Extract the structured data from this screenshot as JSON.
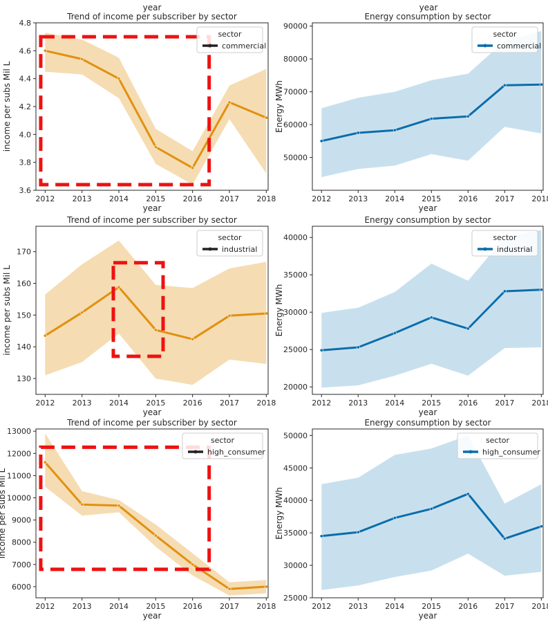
{
  "figure": {
    "top_label": "year"
  },
  "chart_data": [
    {
      "type": "line",
      "title": "Trend of income per subscriber by sector",
      "xlabel": "year",
      "ylabel": "income per subs Mil L",
      "x": [
        2012,
        2013,
        2014,
        2015,
        2016,
        2017,
        2018
      ],
      "xlim": [
        2011.75,
        2018.05
      ],
      "ylim": [
        3.6,
        4.8
      ],
      "yticks": [
        3.6,
        3.8,
        4.0,
        4.2,
        4.4,
        4.6,
        4.8
      ],
      "ytick_labels": [
        "3.6",
        "3.8",
        "4.0",
        "4.2",
        "4.4",
        "4.6",
        "4.8"
      ],
      "color": "#e1900f",
      "band_color": "#f5dcb2",
      "series": [
        {
          "name": "commercial",
          "values": [
            4.6,
            4.54,
            4.4,
            3.91,
            3.76,
            4.23,
            4.12
          ],
          "ci_upper": [
            4.73,
            4.68,
            4.55,
            4.04,
            3.88,
            4.35,
            4.47
          ],
          "ci_lower": [
            4.45,
            4.43,
            4.26,
            3.79,
            3.64,
            4.11,
            3.72
          ]
        }
      ],
      "legend_title": "sector",
      "legend_location": "top-right",
      "legend_marker_color": "#222222",
      "highlight_box": {
        "x_from": 2011.88,
        "x_to": 2016.45,
        "y_from": 3.64,
        "y_to": 4.7
      }
    },
    {
      "type": "line",
      "title": "Energy consumption by sector",
      "xlabel": "year",
      "ylabel": "Energy MWh",
      "x": [
        2012,
        2013,
        2014,
        2015,
        2016,
        2017,
        2018
      ],
      "xlim": [
        2011.75,
        2018.05
      ],
      "ylim": [
        40000,
        91000
      ],
      "yticks": [
        50000,
        60000,
        70000,
        80000,
        90000
      ],
      "ytick_labels": [
        "50000",
        "60000",
        "70000",
        "80000",
        "90000"
      ],
      "color": "#0a6dab",
      "band_color": "#c8e0ee",
      "series": [
        {
          "name": "commercial",
          "values": [
            55000,
            57500,
            58300,
            61800,
            62500,
            72000,
            72200
          ],
          "ci_upper": [
            65000,
            68200,
            70000,
            73500,
            75500,
            85500,
            88500
          ],
          "ci_lower": [
            44000,
            46500,
            47500,
            51000,
            49000,
            59300,
            57300
          ]
        }
      ],
      "legend_title": "sector",
      "legend_location": "top-right",
      "legend_marker_color": "#0a6dab",
      "highlight_box": null
    },
    {
      "type": "line",
      "title": "Trend of income per subscriber by sector",
      "xlabel": "year",
      "ylabel": "income per subs Mil L",
      "x": [
        2012,
        2013,
        2014,
        2015,
        2016,
        2017,
        2018
      ],
      "xlim": [
        2011.75,
        2018.05
      ],
      "ylim": [
        125,
        178
      ],
      "yticks": [
        130,
        140,
        150,
        160,
        170
      ],
      "ytick_labels": [
        "130",
        "140",
        "150",
        "160",
        "170"
      ],
      "color": "#e1900f",
      "band_color": "#f5dcb2",
      "series": [
        {
          "name": "industrial",
          "values": [
            143.5,
            150.8,
            158.8,
            145.3,
            142.4,
            149.8,
            150.5
          ],
          "ci_upper": [
            156.5,
            166.0,
            173.5,
            159.5,
            158.5,
            164.7,
            166.8
          ],
          "ci_lower": [
            131.0,
            135.2,
            144.2,
            130.0,
            128.0,
            136.0,
            134.6
          ]
        }
      ],
      "legend_title": "sector",
      "legend_location": "top-right",
      "legend_marker_color": "#222222",
      "highlight_box": {
        "x_from": 2013.85,
        "x_to": 2015.2,
        "y_from": 137.0,
        "y_to": 166.5
      }
    },
    {
      "type": "line",
      "title": "Energy consumption by sector",
      "xlabel": "year",
      "ylabel": "Energy MWh",
      "x": [
        2012,
        2013,
        2014,
        2015,
        2016,
        2017,
        2018
      ],
      "xlim": [
        2011.75,
        2018.05
      ],
      "ylim": [
        19000,
        41500
      ],
      "yticks": [
        20000,
        25000,
        30000,
        35000,
        40000
      ],
      "ytick_labels": [
        "20000",
        "25000",
        "30000",
        "35000",
        "40000"
      ],
      "color": "#0a6dab",
      "band_color": "#c8e0ee",
      "series": [
        {
          "name": "industrial",
          "values": [
            24900,
            25300,
            27200,
            29300,
            27800,
            32800,
            33000
          ],
          "ci_upper": [
            29900,
            30600,
            32700,
            36500,
            34200,
            40000,
            41000
          ],
          "ci_lower": [
            19900,
            20200,
            21500,
            23100,
            21500,
            25200,
            25300
          ]
        }
      ],
      "legend_title": "sector",
      "legend_location": "top-right",
      "legend_marker_color": "#0a6dab",
      "highlight_box": null
    },
    {
      "type": "line",
      "title": "Trend of income per subscriber by sector",
      "xlabel": "year",
      "ylabel": "income per subs Mil L",
      "x": [
        2012,
        2013,
        2014,
        2015,
        2016,
        2017,
        2018
      ],
      "xlim": [
        2011.75,
        2018.05
      ],
      "ylim": [
        5500,
        13100
      ],
      "yticks": [
        6000,
        7000,
        8000,
        9000,
        10000,
        11000,
        12000,
        13000
      ],
      "ytick_labels": [
        "6000",
        "7000",
        "8000",
        "9000",
        "10000",
        "11000",
        "12000",
        "13000"
      ],
      "color": "#e1900f",
      "band_color": "#f5dcb2",
      "series": [
        {
          "name": "high_consumer",
          "values": [
            11600,
            9700,
            9650,
            8300,
            7000,
            5900,
            6000
          ],
          "ci_upper": [
            12900,
            10300,
            9900,
            8800,
            7500,
            6200,
            6300
          ],
          "ci_lower": [
            10500,
            9200,
            9350,
            7800,
            6500,
            5600,
            5700
          ]
        }
      ],
      "legend_title": "sector",
      "legend_location": "top-right",
      "legend_marker_color": "#222222",
      "highlight_box": {
        "x_from": 2011.88,
        "x_to": 2016.45,
        "y_from": 6780,
        "y_to": 12280
      }
    },
    {
      "type": "line",
      "title": "Energy consumption by sector",
      "xlabel": "year",
      "ylabel": "Energy MWh",
      "x": [
        2012,
        2013,
        2014,
        2015,
        2016,
        2017,
        2018
      ],
      "xlim": [
        2011.75,
        2018.05
      ],
      "ylim": [
        25000,
        51000
      ],
      "yticks": [
        25000,
        30000,
        35000,
        40000,
        45000,
        50000
      ],
      "ytick_labels": [
        "25000",
        "30000",
        "35000",
        "40000",
        "45000",
        "50000"
      ],
      "color": "#0a6dab",
      "band_color": "#c8e0ee",
      "series": [
        {
          "name": "high_consumer",
          "values": [
            34500,
            35100,
            37300,
            38700,
            41000,
            34100,
            36000
          ],
          "ci_upper": [
            42500,
            43500,
            47000,
            48000,
            50000,
            39500,
            42500
          ],
          "ci_lower": [
            26200,
            26900,
            28200,
            29200,
            31800,
            28400,
            29000
          ]
        }
      ],
      "legend_title": "sector",
      "legend_location": "top-right",
      "legend_marker_color": "#0a6dab",
      "highlight_box": null
    }
  ]
}
